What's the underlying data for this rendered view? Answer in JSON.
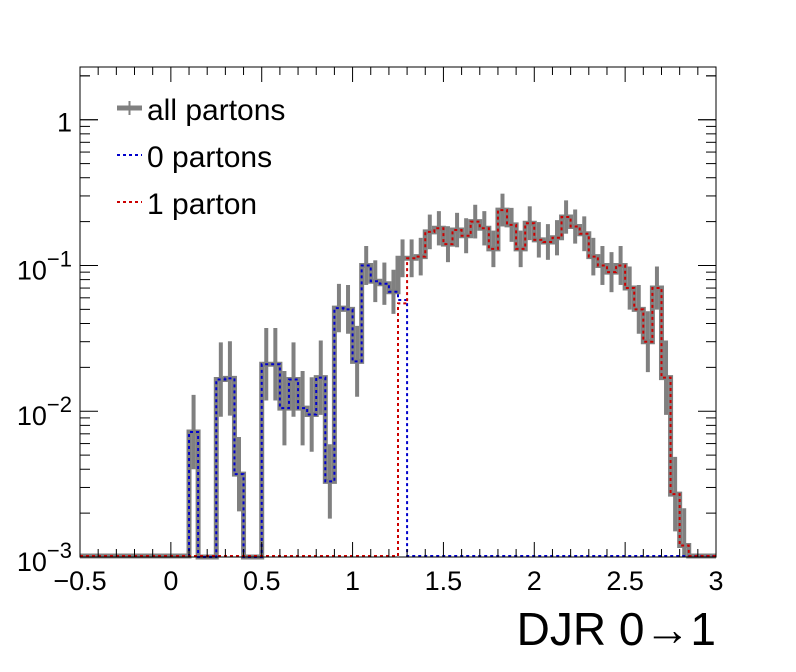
{
  "chart_data": {
    "type": "histogram-step",
    "xlabel": "DJR 0→1",
    "ylabel": "",
    "xlim": [
      -0.5,
      3.0
    ],
    "ylim": [
      0.001,
      2.3
    ],
    "yscale": "log",
    "x_ticks": [
      "−0.5",
      "0",
      "0.5",
      "1",
      "1.5",
      "2",
      "2.5",
      "3"
    ],
    "y_ticks": [
      {
        "value": 1,
        "base": "1",
        "exp": ""
      },
      {
        "value": 0.1,
        "base": "10",
        "exp": "−1"
      },
      {
        "value": 0.01,
        "base": "10",
        "exp": "−2"
      },
      {
        "value": 0.001,
        "base": "10",
        "exp": "−3"
      }
    ],
    "bin_width": 0.05,
    "legend_position": "top-left",
    "legend": [
      {
        "label": "all partons",
        "style": "solid",
        "color": "#808080"
      },
      {
        "label": "0 partons",
        "style": "dotted",
        "color": "#0000cc"
      },
      {
        "label": "1 parton",
        "style": "dotted",
        "color": "#cc0000"
      }
    ],
    "series": [
      {
        "name": "all partons",
        "color": "#808080",
        "bins": [
          [
            0.1,
            0.15,
            0.0072
          ],
          [
            0.15,
            0.2,
            0.001
          ],
          [
            0.2,
            0.25,
            0.001
          ],
          [
            0.25,
            0.3,
            0.0165
          ],
          [
            0.3,
            0.35,
            0.0168
          ],
          [
            0.35,
            0.4,
            0.0037
          ],
          [
            0.4,
            0.45,
            0.001
          ],
          [
            0.45,
            0.5,
            0.001
          ],
          [
            0.5,
            0.55,
            0.021
          ],
          [
            0.55,
            0.6,
            0.021
          ],
          [
            0.6,
            0.65,
            0.0105
          ],
          [
            0.65,
            0.7,
            0.0165
          ],
          [
            0.7,
            0.75,
            0.0105
          ],
          [
            0.75,
            0.8,
            0.0095
          ],
          [
            0.8,
            0.85,
            0.017
          ],
          [
            0.85,
            0.9,
            0.0033
          ],
          [
            0.9,
            0.95,
            0.051
          ],
          [
            0.95,
            1.0,
            0.05
          ],
          [
            1.0,
            1.05,
            0.022
          ],
          [
            1.05,
            1.1,
            0.1
          ],
          [
            1.1,
            1.15,
            0.078
          ],
          [
            1.15,
            1.2,
            0.075
          ],
          [
            1.2,
            1.25,
            0.066
          ],
          [
            1.25,
            1.3,
            0.112
          ],
          [
            1.3,
            1.35,
            0.112
          ],
          [
            1.35,
            1.4,
            0.115
          ],
          [
            1.4,
            1.45,
            0.17
          ],
          [
            1.45,
            1.5,
            0.18
          ],
          [
            1.5,
            1.55,
            0.14
          ],
          [
            1.55,
            1.6,
            0.175
          ],
          [
            1.6,
            1.65,
            0.16
          ],
          [
            1.65,
            1.7,
            0.2
          ],
          [
            1.7,
            1.75,
            0.18
          ],
          [
            1.75,
            1.8,
            0.13
          ],
          [
            1.8,
            1.85,
            0.24
          ],
          [
            1.85,
            1.9,
            0.19
          ],
          [
            1.9,
            1.95,
            0.13
          ],
          [
            1.95,
            2.0,
            0.195
          ],
          [
            2.0,
            2.05,
            0.15
          ],
          [
            2.05,
            2.1,
            0.145
          ],
          [
            2.1,
            2.15,
            0.155
          ],
          [
            2.15,
            2.2,
            0.215
          ],
          [
            2.2,
            2.25,
            0.185
          ],
          [
            2.25,
            2.3,
            0.165
          ],
          [
            2.3,
            2.35,
            0.115
          ],
          [
            2.35,
            2.4,
            0.1
          ],
          [
            2.4,
            2.45,
            0.09
          ],
          [
            2.45,
            2.5,
            0.1
          ],
          [
            2.5,
            2.55,
            0.07
          ],
          [
            2.55,
            2.6,
            0.05
          ],
          [
            2.6,
            2.65,
            0.03
          ],
          [
            2.65,
            2.7,
            0.07
          ],
          [
            2.7,
            2.75,
            0.017
          ],
          [
            2.75,
            2.8,
            0.0027
          ],
          [
            2.8,
            2.85,
            0.0012
          ]
        ]
      },
      {
        "name": "0 partons",
        "color": "#0000cc",
        "bins": [
          [
            0.1,
            0.15,
            0.0072
          ],
          [
            0.15,
            0.2,
            0.001
          ],
          [
            0.2,
            0.25,
            0.001
          ],
          [
            0.25,
            0.3,
            0.0165
          ],
          [
            0.3,
            0.35,
            0.0168
          ],
          [
            0.35,
            0.4,
            0.0037
          ],
          [
            0.4,
            0.45,
            0.001
          ],
          [
            0.45,
            0.5,
            0.001
          ],
          [
            0.5,
            0.55,
            0.021
          ],
          [
            0.55,
            0.6,
            0.021
          ],
          [
            0.6,
            0.65,
            0.0105
          ],
          [
            0.65,
            0.7,
            0.0165
          ],
          [
            0.7,
            0.75,
            0.0105
          ],
          [
            0.75,
            0.8,
            0.0095
          ],
          [
            0.8,
            0.85,
            0.017
          ],
          [
            0.85,
            0.9,
            0.0033
          ],
          [
            0.9,
            0.95,
            0.051
          ],
          [
            0.95,
            1.0,
            0.05
          ],
          [
            1.0,
            1.05,
            0.022
          ],
          [
            1.05,
            1.1,
            0.1
          ],
          [
            1.1,
            1.15,
            0.078
          ],
          [
            1.15,
            1.2,
            0.075
          ],
          [
            1.2,
            1.25,
            0.066
          ],
          [
            1.25,
            1.3,
            0.058
          ]
        ]
      },
      {
        "name": "1 parton",
        "color": "#cc0000",
        "bins": [
          [
            1.25,
            1.3,
            0.055
          ],
          [
            1.3,
            1.35,
            0.112
          ],
          [
            1.35,
            1.4,
            0.115
          ],
          [
            1.4,
            1.45,
            0.17
          ],
          [
            1.45,
            1.5,
            0.18
          ],
          [
            1.5,
            1.55,
            0.14
          ],
          [
            1.55,
            1.6,
            0.175
          ],
          [
            1.6,
            1.65,
            0.16
          ],
          [
            1.65,
            1.7,
            0.2
          ],
          [
            1.7,
            1.75,
            0.18
          ],
          [
            1.75,
            1.8,
            0.13
          ],
          [
            1.8,
            1.85,
            0.24
          ],
          [
            1.85,
            1.9,
            0.19
          ],
          [
            1.9,
            1.95,
            0.13
          ],
          [
            1.95,
            2.0,
            0.195
          ],
          [
            2.0,
            2.05,
            0.15
          ],
          [
            2.05,
            2.1,
            0.145
          ],
          [
            2.1,
            2.15,
            0.155
          ],
          [
            2.15,
            2.2,
            0.215
          ],
          [
            2.2,
            2.25,
            0.185
          ],
          [
            2.25,
            2.3,
            0.165
          ],
          [
            2.3,
            2.35,
            0.115
          ],
          [
            2.35,
            2.4,
            0.1
          ],
          [
            2.4,
            2.45,
            0.09
          ],
          [
            2.45,
            2.5,
            0.1
          ],
          [
            2.5,
            2.55,
            0.07
          ],
          [
            2.55,
            2.6,
            0.05
          ],
          [
            2.6,
            2.65,
            0.03
          ],
          [
            2.65,
            2.7,
            0.07
          ],
          [
            2.7,
            2.75,
            0.017
          ],
          [
            2.75,
            2.8,
            0.0027
          ],
          [
            2.8,
            2.85,
            0.0012
          ]
        ]
      }
    ]
  }
}
